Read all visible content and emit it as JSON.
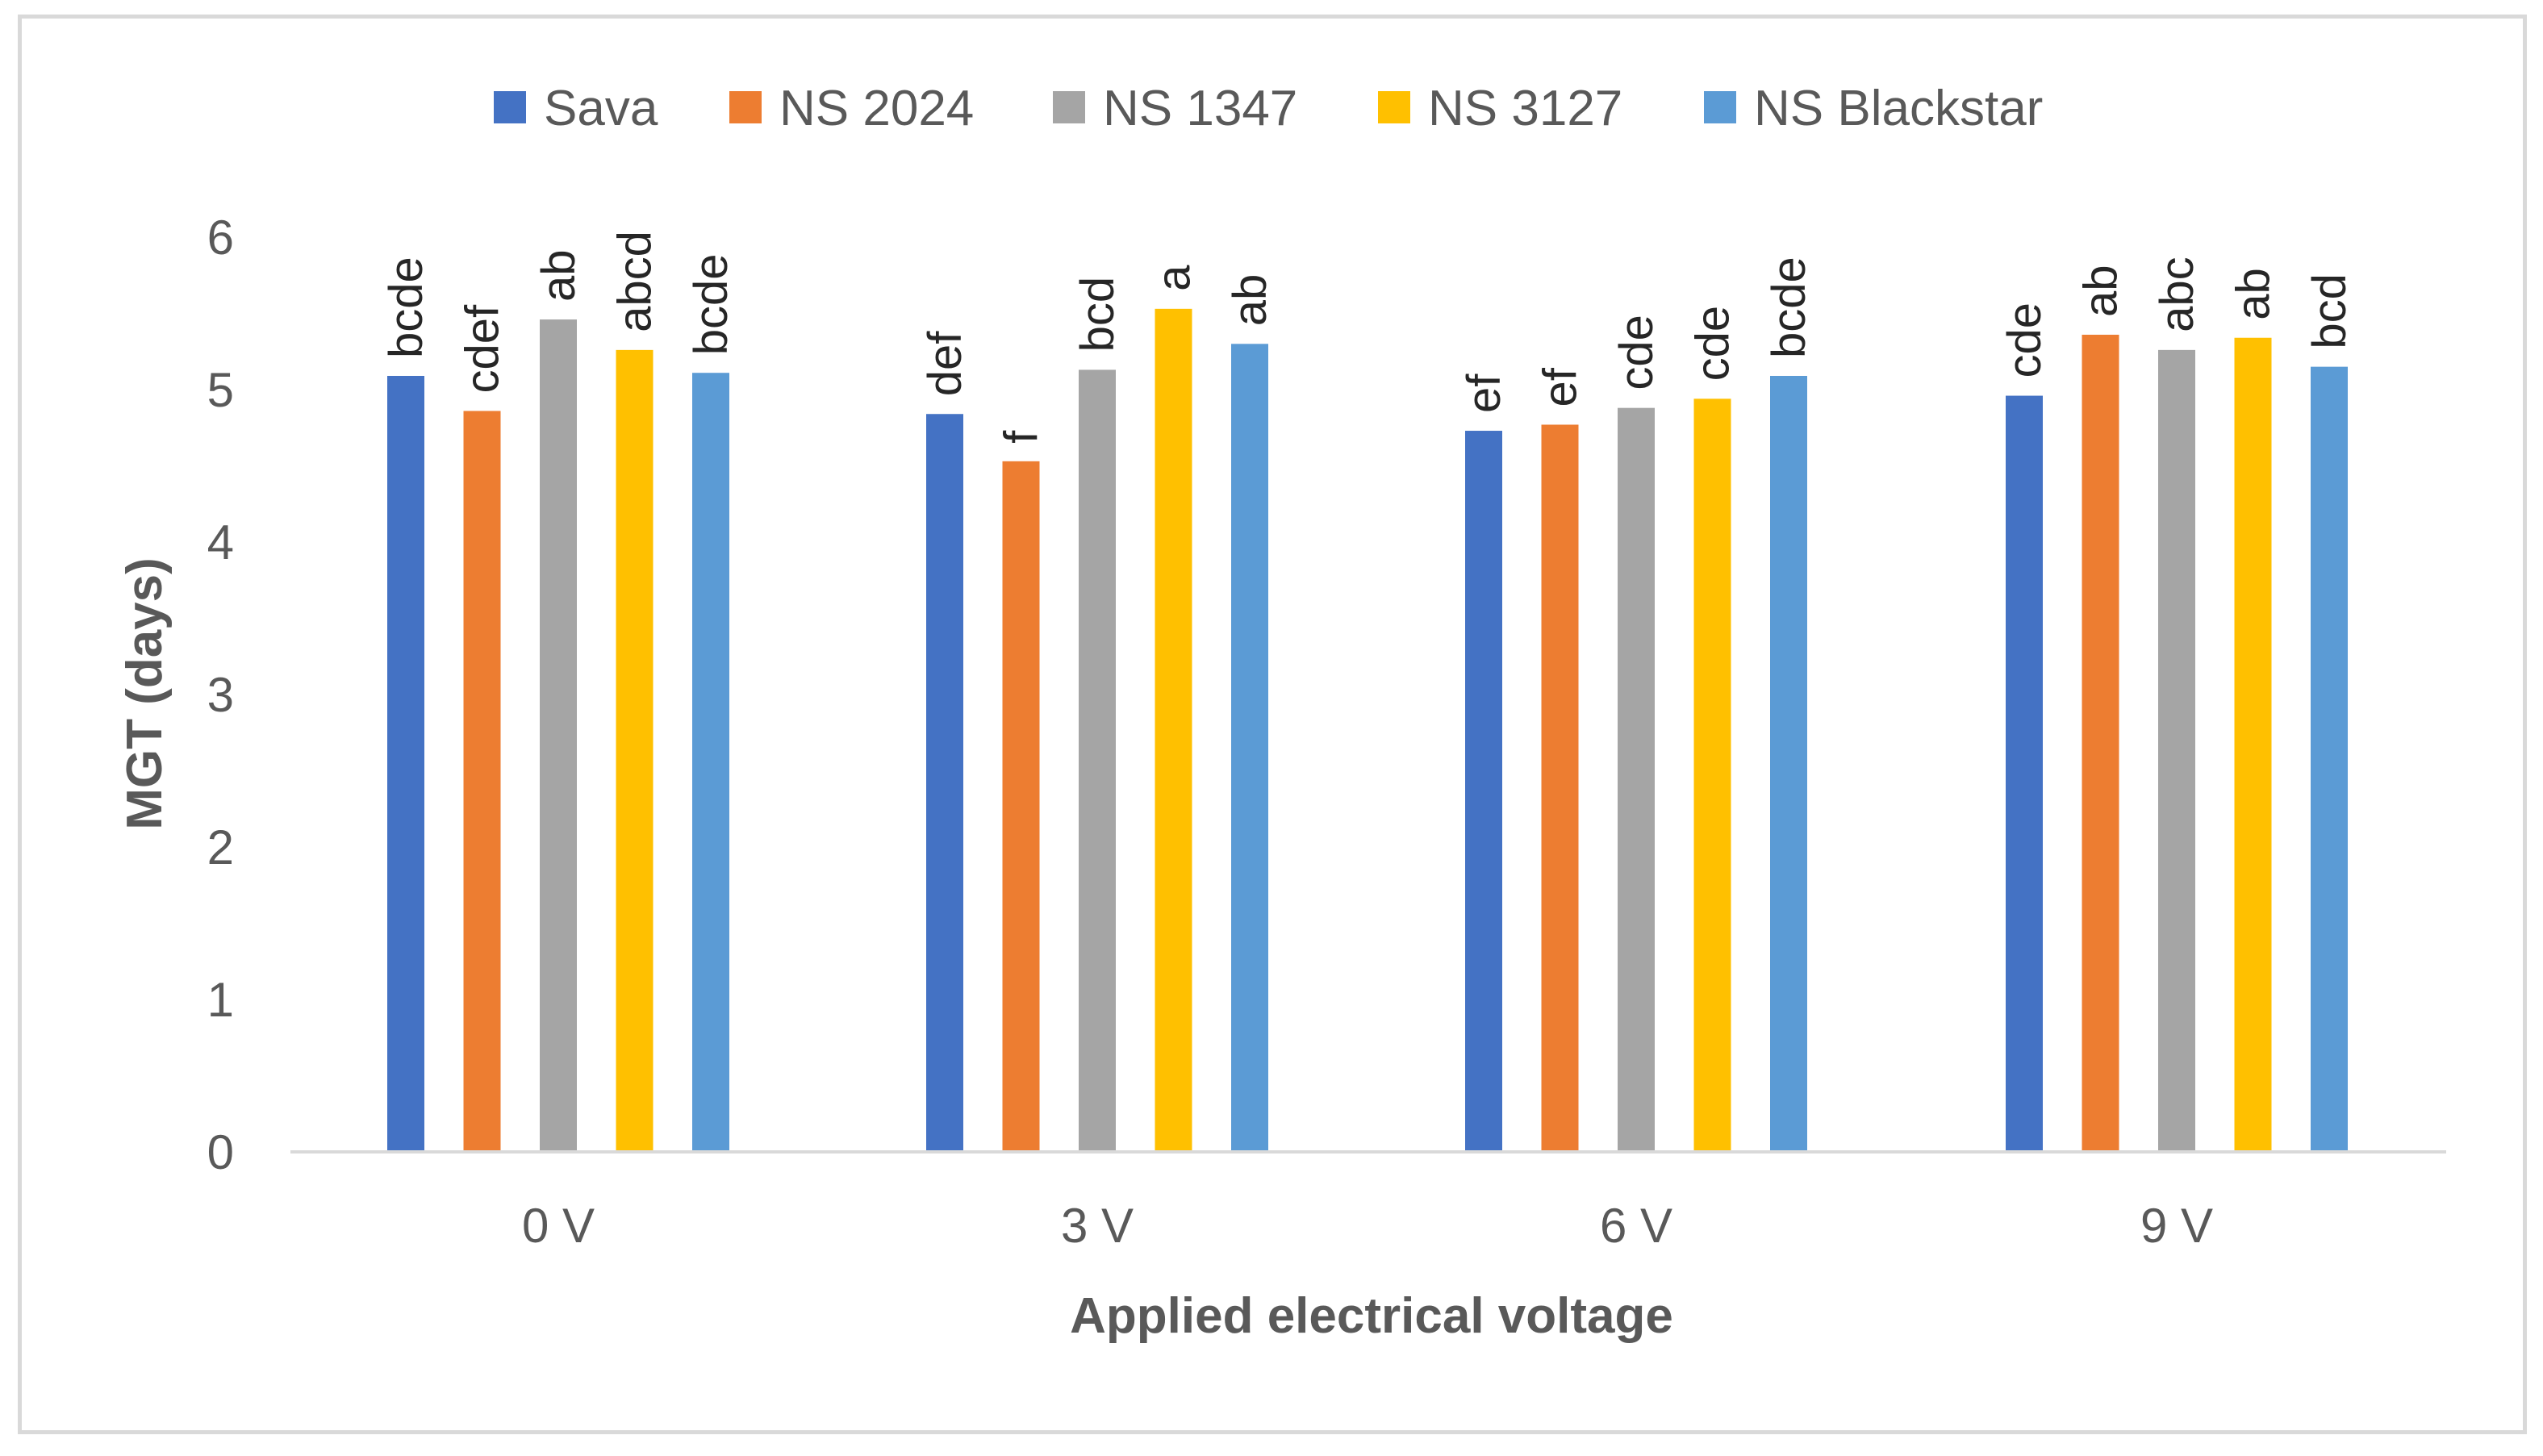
{
  "chart_data": {
    "type": "bar",
    "title": "",
    "xlabel": "Applied electrical voltage",
    "ylabel": "MGT (days)",
    "ylim": [
      0,
      6
    ],
    "yticks": [
      "0",
      "1",
      "2",
      "3",
      "4",
      "5",
      "6"
    ],
    "grid": false,
    "legend_position": "top",
    "categories": [
      "0 V",
      "3 V",
      "6 V",
      "9 V"
    ],
    "series": [
      {
        "name": "Sava",
        "color": "#4472C4",
        "values": [
          5.09,
          4.84,
          4.73,
          4.96
        ],
        "labels": [
          "bcde",
          "def",
          "ef",
          "cde"
        ]
      },
      {
        "name": "NS 2024",
        "color": "#ED7D31",
        "values": [
          4.86,
          4.53,
          4.77,
          5.36
        ],
        "labels": [
          "cdef",
          "f",
          "ef",
          "ab"
        ]
      },
      {
        "name": "NS 1347",
        "color": "#A5A5A5",
        "values": [
          5.46,
          5.13,
          4.88,
          5.26
        ],
        "labels": [
          "ab",
          "bcd",
          "cde",
          "abc"
        ]
      },
      {
        "name": "NS 3127",
        "color": "#FFC000",
        "values": [
          5.26,
          5.53,
          4.94,
          5.34
        ],
        "labels": [
          "abcd",
          "a",
          "cde",
          "ab"
        ]
      },
      {
        "name": "NS Blackstar",
        "color": "#5B9BD5",
        "values": [
          5.11,
          5.3,
          5.09,
          5.15
        ],
        "labels": [
          "bcde",
          "ab",
          "bcde",
          "bcd"
        ]
      }
    ]
  }
}
